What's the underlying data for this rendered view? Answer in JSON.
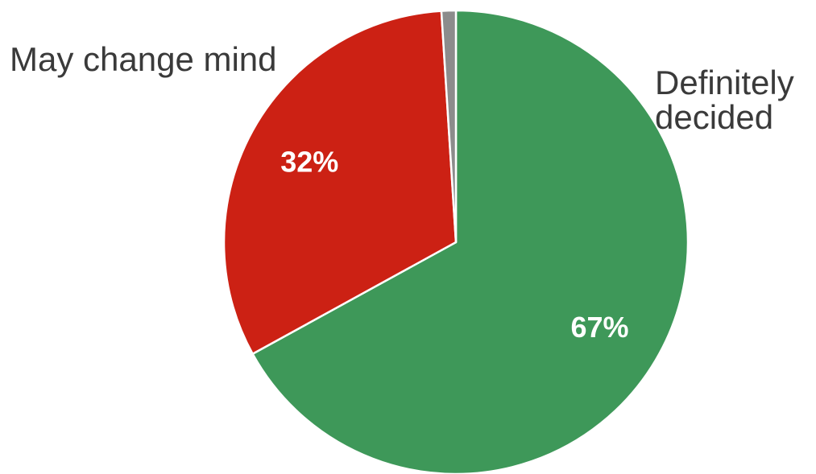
{
  "chart_data": {
    "type": "pie",
    "title": "",
    "start_angle_deg": 0,
    "direction": "clockwise",
    "slices": [
      {
        "key": "definitely",
        "label_lines": [
          "Definitely",
          "decided"
        ],
        "value": 67,
        "value_label": "67%",
        "color": "#3e9859"
      },
      {
        "key": "may_change",
        "label_lines": [
          "May change mind"
        ],
        "value": 32,
        "value_label": "32%",
        "color": "#cc2114"
      },
      {
        "key": "other",
        "label_lines": [],
        "value": 1,
        "value_label": "",
        "color": "#8c8c8c"
      }
    ]
  }
}
